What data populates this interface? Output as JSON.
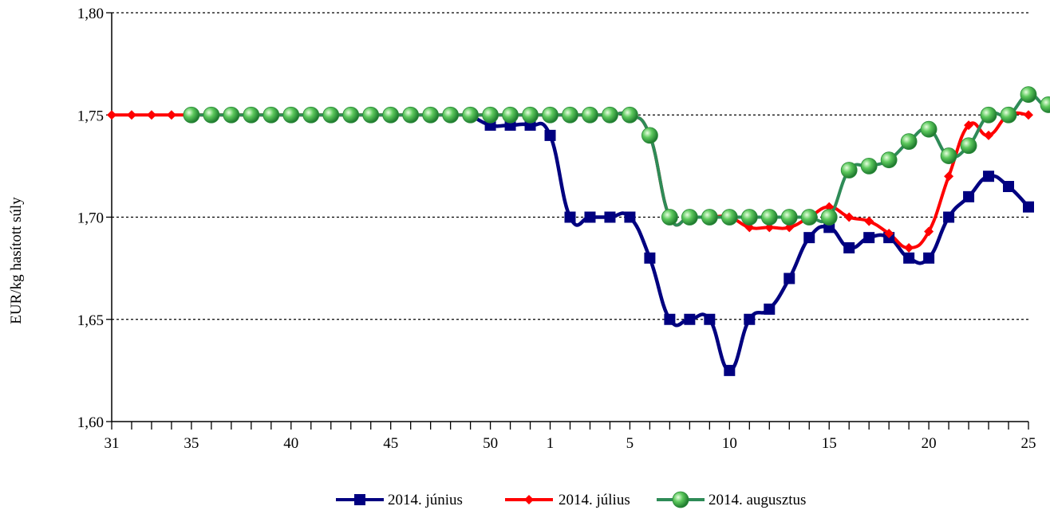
{
  "chart_data": {
    "type": "line",
    "title": "",
    "xlabel": "",
    "ylabel": "EUR/kg hasított súly",
    "ylim": [
      1.6,
      1.8
    ],
    "yticks": [
      "1,60",
      "1,65",
      "1,70",
      "1,75",
      "1,80"
    ],
    "x_tick_labels": [
      {
        "i": 0,
        "label": "31"
      },
      {
        "i": 4,
        "label": "35"
      },
      {
        "i": 9,
        "label": "40"
      },
      {
        "i": 14,
        "label": "45"
      },
      {
        "i": 19,
        "label": "50"
      },
      {
        "i": 22,
        "label": "1"
      },
      {
        "i": 26,
        "label": "5"
      },
      {
        "i": 31,
        "label": "10"
      },
      {
        "i": 36,
        "label": "15"
      },
      {
        "i": 41,
        "label": "20"
      },
      {
        "i": 46,
        "label": "25"
      }
    ],
    "grid": "horizontal dotted",
    "legend_position": "bottom",
    "series": [
      {
        "name": "2014. június",
        "color": "#000080",
        "marker": "square",
        "start_index": 18,
        "values": [
          1.75,
          1.745,
          1.745,
          1.745,
          1.74,
          1.7,
          1.7,
          1.7,
          1.7,
          1.68,
          1.65,
          1.65,
          1.65,
          1.625,
          1.65,
          1.655,
          1.67,
          1.69,
          1.695,
          1.685,
          1.69,
          1.69,
          1.68,
          1.68,
          1.7,
          1.71,
          1.72,
          1.715,
          1.705
        ]
      },
      {
        "name": "2014. július",
        "color": "#ff0000",
        "marker": "diamond",
        "start_index": 0,
        "values": [
          1.75,
          1.75,
          1.75,
          1.75,
          1.75,
          1.75,
          1.75,
          1.75,
          1.75,
          1.75,
          1.75,
          1.75,
          1.75,
          1.75,
          1.75,
          1.75,
          1.75,
          1.75,
          1.75,
          1.75,
          1.75,
          1.75,
          1.75,
          1.75,
          1.75,
          1.75,
          1.75,
          1.74,
          1.7,
          1.7,
          1.7,
          1.7,
          1.695,
          1.695,
          1.695,
          1.7,
          1.705,
          1.7,
          1.698,
          1.692,
          1.685,
          1.693,
          1.72,
          1.745,
          1.74,
          1.75,
          1.75
        ]
      },
      {
        "name": "2014. augusztus",
        "color": "#2e8b57",
        "marker": "sphere",
        "start_index": 4,
        "values": [
          1.75,
          1.75,
          1.75,
          1.75,
          1.75,
          1.75,
          1.75,
          1.75,
          1.75,
          1.75,
          1.75,
          1.75,
          1.75,
          1.75,
          1.75,
          1.75,
          1.75,
          1.75,
          1.75,
          1.75,
          1.75,
          1.75,
          1.75,
          1.74,
          1.7,
          1.7,
          1.7,
          1.7,
          1.7,
          1.7,
          1.7,
          1.7,
          1.7,
          1.723,
          1.725,
          1.728,
          1.737,
          1.743,
          1.73,
          1.735,
          1.75,
          1.75,
          1.76,
          1.755,
          1.768
        ]
      }
    ]
  }
}
